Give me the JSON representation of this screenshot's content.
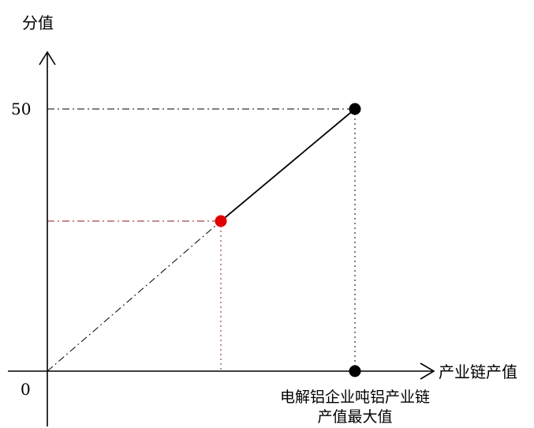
{
  "labels": {
    "y_axis": "分值",
    "x_axis": "产业链产值",
    "y_tick_50": "50",
    "origin": "0",
    "x_max_line1": "电解铝企业吨铝产业链",
    "x_max_line2": "产值最大值"
  },
  "colors": {
    "axis": "#000000",
    "solid_line": "#000000",
    "guide_black": "#000000",
    "guide_red": "#8b1a1a",
    "max_point": "#000000",
    "mid_point": "#e00000"
  }
}
